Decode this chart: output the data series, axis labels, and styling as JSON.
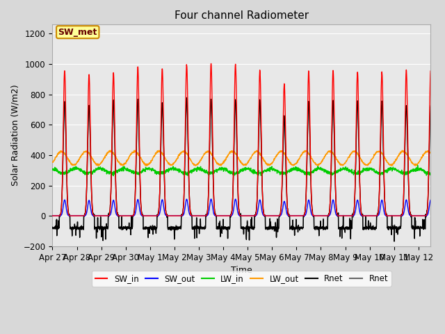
{
  "title": "Four channel Radiometer",
  "xlabel": "Time",
  "ylabel": "Solar Radiation (W/m2)",
  "ylim": [
    -200,
    1260
  ],
  "yticks": [
    -200,
    0,
    200,
    400,
    600,
    800,
    1000,
    1200
  ],
  "fig_bg_color": "#d8d8d8",
  "plot_bg_color": "#e8e8e8",
  "grid_color": "#ffffff",
  "annotation_text": "SW_met",
  "annotation_bg": "#ffff99",
  "annotation_border": "#cc8800",
  "series": {
    "SW_in": {
      "color": "#ff0000",
      "lw": 1.0
    },
    "SW_out": {
      "color": "#0000ff",
      "lw": 1.0
    },
    "LW_in": {
      "color": "#00cc00",
      "lw": 1.0
    },
    "LW_out": {
      "color": "#ff9900",
      "lw": 1.0
    },
    "Rnet": {
      "color": "#000000",
      "lw": 1.0
    },
    "Rnet2": {
      "color": "#666666",
      "lw": 1.0
    }
  },
  "x_labels": [
    "Apr 27",
    "Apr 28",
    "Apr 29",
    "Apr 30",
    "May 1",
    "May 2",
    "May 3",
    "May 4",
    "May 5",
    "May 6",
    "May 7",
    "May 8",
    "May 9",
    "May 10",
    "May 11",
    "May 12"
  ],
  "legend_entries": [
    "SW_in",
    "SW_out",
    "LW_in",
    "LW_out",
    "Rnet",
    "Rnet"
  ]
}
